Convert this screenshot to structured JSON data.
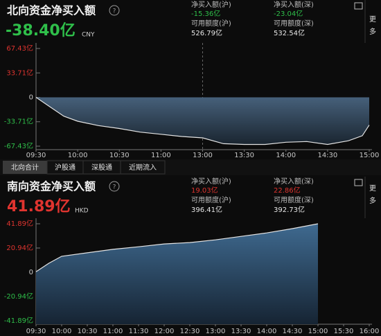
{
  "north": {
    "title": "北向资金净买入额",
    "value": "-38.40亿",
    "currency": "CNY",
    "stats": [
      {
        "label": "净买入额(沪)",
        "value": "-15.36亿"
      },
      {
        "label": "净买入额(深)",
        "value": "-23.04亿"
      },
      {
        "label": "可用额度(沪)",
        "value": "526.79亿"
      },
      {
        "label": "可用额度(深)",
        "value": "532.54亿"
      }
    ]
  },
  "tabs": [
    "北向合计",
    "沪股通",
    "深股通",
    "近期流入"
  ],
  "south": {
    "title": "南向资金净买入额",
    "value": "41.89亿",
    "currency": "HKD",
    "stats": [
      {
        "label": "净买入额(沪)",
        "value": "19.03亿"
      },
      {
        "label": "净买入额(深)",
        "value": "22.86亿"
      },
      {
        "label": "可用额度(沪)",
        "value": "396.41亿"
      },
      {
        "label": "可用额度(深)",
        "value": "392.73亿"
      }
    ]
  },
  "more": [
    "更",
    "多"
  ],
  "chart_data": [
    {
      "type": "area",
      "color": "#e4e4e4",
      "x": [
        0,
        10,
        20,
        30,
        45,
        60,
        75,
        90,
        105,
        120,
        135,
        150,
        165,
        180,
        195,
        210,
        225,
        235,
        240
      ],
      "values": [
        0,
        -13,
        -26,
        -33,
        -39,
        -43,
        -48,
        -51,
        -54,
        -56,
        -64,
        -65,
        -65,
        -62,
        -61,
        -65,
        -60,
        -53,
        -38.4
      ],
      "xlim": [
        0,
        240
      ],
      "xticks": [
        {
          "value": 0,
          "label": "09:30"
        },
        {
          "value": 30,
          "label": "10:00"
        },
        {
          "value": 60,
          "label": "10:30"
        },
        {
          "value": 90,
          "label": "11:00"
        },
        {
          "value": 120,
          "label": "13:00"
        },
        {
          "value": 150,
          "label": "13:30"
        },
        {
          "value": 180,
          "label": "14:00"
        },
        {
          "value": 210,
          "label": "14:30"
        },
        {
          "value": 240,
          "label": "15:00"
        }
      ],
      "ylim": [
        -67.43,
        67.43
      ],
      "yticks": [
        {
          "value": 67.43,
          "label": "67.43亿"
        },
        {
          "value": 33.71,
          "label": "33.71亿"
        },
        0,
        {
          "value": -33.71,
          "label": "-33.71亿"
        },
        {
          "value": -67.43,
          "label": "-67.43亿"
        }
      ]
    },
    {
      "type": "area",
      "color": "#e4e4e4",
      "x": [
        0,
        15,
        30,
        60,
        90,
        120,
        150,
        180,
        210,
        240,
        270,
        300,
        330
      ],
      "values": [
        0.5,
        7.8,
        13.8,
        16.8,
        19.8,
        22,
        24.5,
        25.7,
        28,
        31,
        34,
        37.7,
        41.89
      ],
      "xlim": [
        0,
        390
      ],
      "xticks": [
        {
          "value": 0,
          "label": "09:30"
        },
        {
          "value": 30,
          "label": "10:00"
        },
        {
          "value": 60,
          "label": "10:30"
        },
        {
          "value": 90,
          "label": "11:00"
        },
        {
          "value": 120,
          "label": "11:30"
        },
        {
          "value": 150,
          "label": "12:00"
        },
        {
          "value": 180,
          "label": "12:30"
        },
        {
          "value": 210,
          "label": "13:00"
        },
        {
          "value": 240,
          "label": "13:30"
        },
        {
          "value": 270,
          "label": "14:00"
        },
        {
          "value": 300,
          "label": "14:30"
        },
        {
          "value": 330,
          "label": "15:00"
        },
        {
          "value": 360,
          "label": "15:30"
        },
        {
          "value": 390,
          "label": "16:00"
        }
      ],
      "ylim": [
        -41.89,
        41.89
      ],
      "yticks": [
        {
          "value": 41.89,
          "label": "41.89亿"
        },
        {
          "value": 20.94,
          "label": "20.94亿"
        },
        0,
        {
          "value": -20.94,
          "label": "-20.94亿"
        },
        {
          "value": -41.89,
          "label": "-41.89亿"
        }
      ]
    }
  ]
}
